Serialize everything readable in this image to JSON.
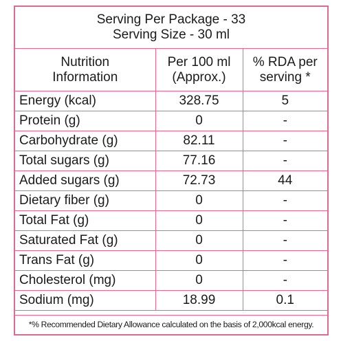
{
  "serving": {
    "per_package": "Serving Per Package - 33",
    "size": "Serving Size - 30 ml"
  },
  "headers": {
    "col1_line1": "Nutrition",
    "col1_line2": "Information",
    "col2_line1": "Per 100 ml",
    "col2_line2": "(Approx.)",
    "col3_line1": "% RDA per",
    "col3_line2": "serving *"
  },
  "rows": [
    {
      "label": "Energy (kcal)",
      "per100": "328.75",
      "rda": "5"
    },
    {
      "label": "Protein (g)",
      "per100": "0",
      "rda": "-"
    },
    {
      "label": "Carbohydrate (g)",
      "per100": "82.11",
      "rda": "-"
    },
    {
      "label": "Total sugars (g)",
      "per100": "77.16",
      "rda": "-"
    },
    {
      "label": "Added sugars (g)",
      "per100": "72.73",
      "rda": "44"
    },
    {
      "label": "Dietary fiber (g)",
      "per100": "0",
      "rda": "-"
    },
    {
      "label": "Total Fat (g)",
      "per100": "0",
      "rda": "-"
    },
    {
      "label": "Saturated Fat (g)",
      "per100": "0",
      "rda": "-"
    },
    {
      "label": "Trans Fat (g)",
      "per100": "0",
      "rda": "-"
    },
    {
      "label": "Cholesterol (mg)",
      "per100": "0",
      "rda": "-"
    },
    {
      "label": "Sodium (mg)",
      "per100": "18.99",
      "rda": "0.1"
    }
  ],
  "footnote": "*% Recommended Dietary Allowance calculated on the basis of 2,000kcal energy.",
  "colors": {
    "border": "#e06a8e",
    "text": "#1a1a1a"
  }
}
